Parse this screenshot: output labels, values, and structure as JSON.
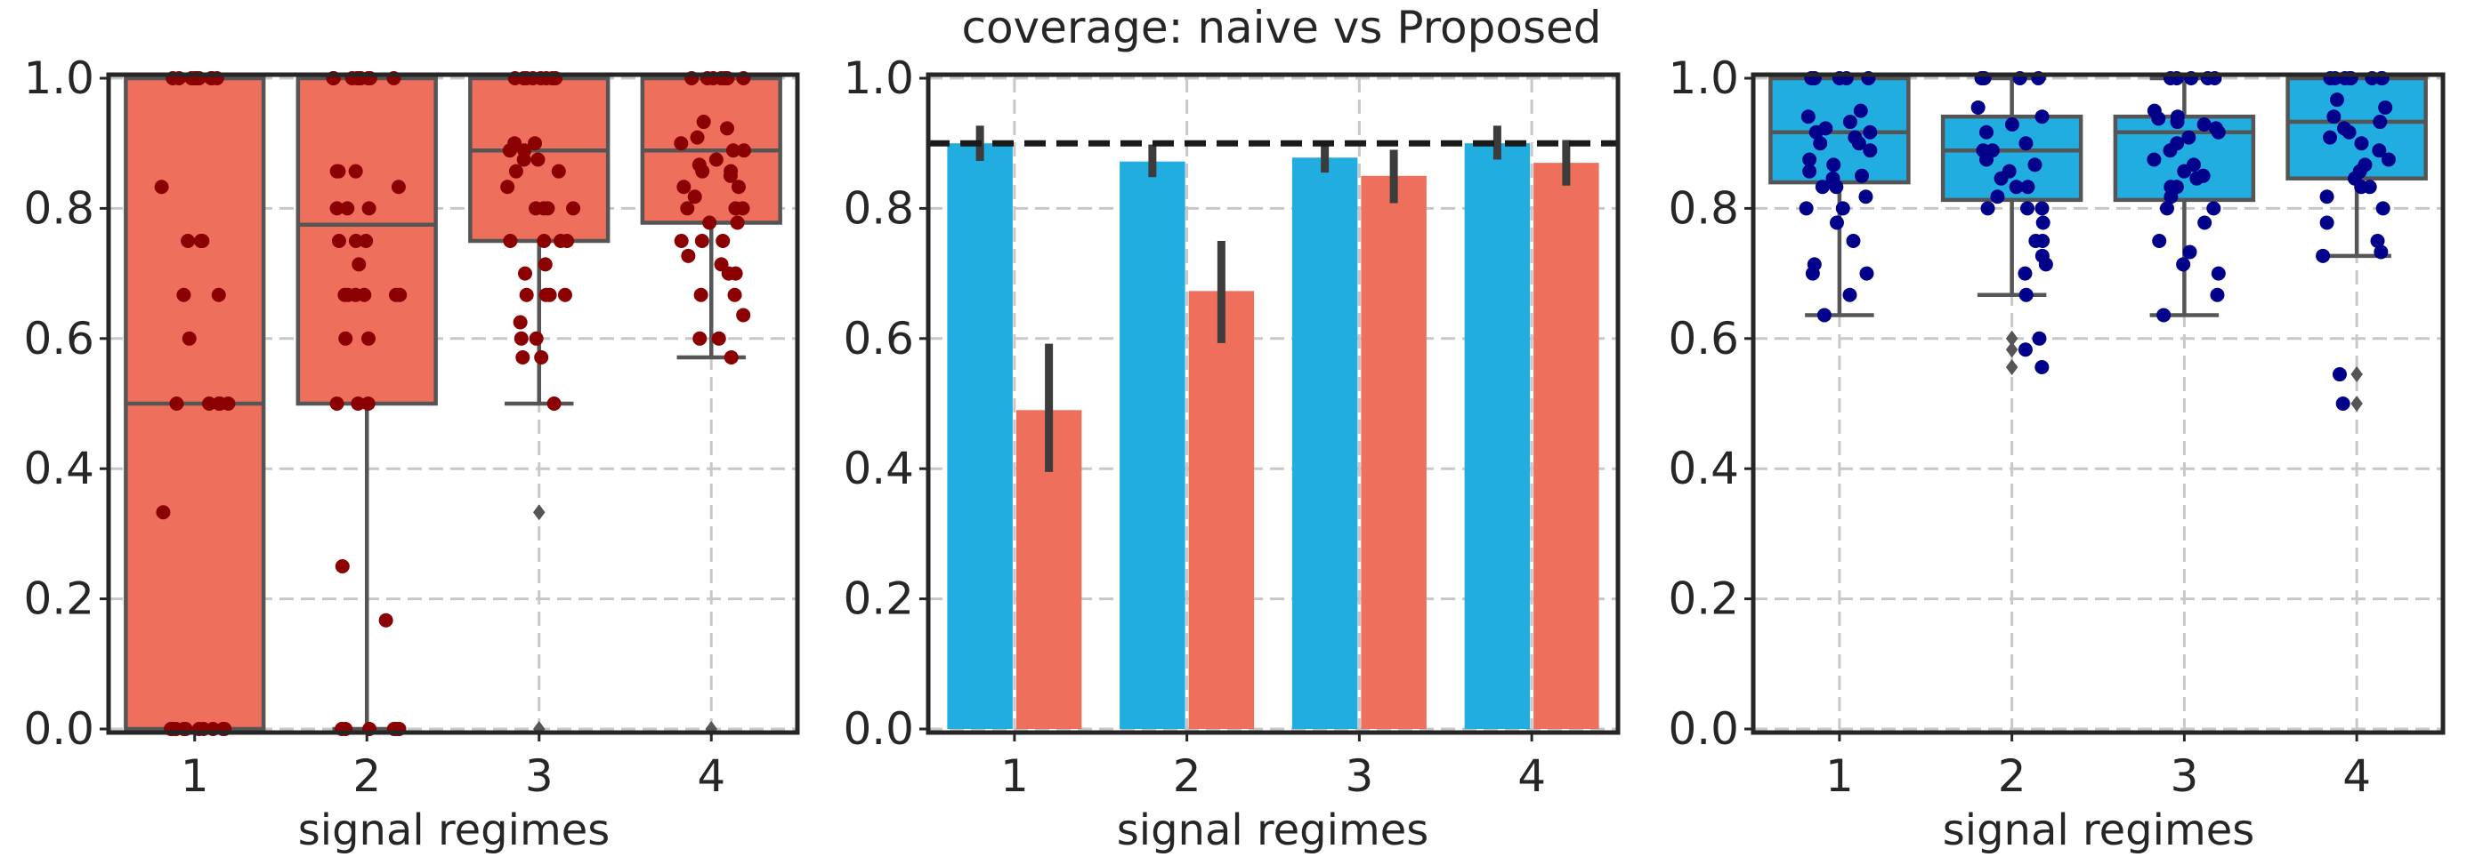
{
  "figure": {
    "suptitle": "coverage: naive vs Proposed"
  },
  "chart_data": [
    {
      "type": "box",
      "title": "",
      "xlabel": "signal regimes",
      "ylabel": "",
      "categories": [
        "1",
        "2",
        "3",
        "4"
      ],
      "ylim": [
        0,
        1.0
      ],
      "yticks": [
        "0.0",
        "0.2",
        "0.4",
        "0.6",
        "0.8",
        "1.0"
      ],
      "grid": true,
      "box_color": "#ee6f5c",
      "point_color": "#8b0000",
      "series": [
        {
          "values": [
            {
              "whislo": 0.0,
              "q1": 0.0,
              "median": 0.5,
              "q3": 1.0,
              "whishi": 1.0,
              "fliers": []
            },
            {
              "whislo": 0.0,
              "q1": 0.5,
              "median": 0.775,
              "q3": 1.0,
              "whishi": 1.0,
              "fliers": []
            },
            {
              "whislo": 0.5,
              "q1": 0.75,
              "median": 0.889,
              "q3": 1.0,
              "whishi": 1.0,
              "fliers": [
                0.333,
                0.0
              ]
            },
            {
              "whislo": 0.571,
              "q1": 0.778,
              "median": 0.889,
              "q3": 1.0,
              "whishi": 1.0,
              "fliers": [
                0.0
              ]
            }
          ],
          "points": [
            [
              1.0,
              1.0,
              1.0,
              1.0,
              1.0,
              1.0,
              1.0,
              1.0,
              1.0,
              1.0,
              0.833,
              0.75,
              0.75,
              0.75,
              0.667,
              0.667,
              0.6,
              0.5,
              0.5,
              0.5,
              0.5,
              0.5,
              0.333,
              0.0,
              0.0,
              0.0,
              0.0,
              0.0,
              0.0,
              0.0,
              0.0,
              0.0,
              0.0
            ],
            [
              1.0,
              1.0,
              1.0,
              1.0,
              1.0,
              1.0,
              1.0,
              1.0,
              1.0,
              0.857,
              0.857,
              0.857,
              0.833,
              0.8,
              0.8,
              0.8,
              0.75,
              0.75,
              0.75,
              0.714,
              0.667,
              0.667,
              0.667,
              0.667,
              0.667,
              0.667,
              0.6,
              0.6,
              0.5,
              0.5,
              0.5,
              0.25,
              0.167,
              0.0,
              0.0,
              0.0,
              0.0,
              0.0,
              0.0
            ],
            [
              1.0,
              1.0,
              1.0,
              1.0,
              1.0,
              1.0,
              1.0,
              1.0,
              0.9,
              0.9,
              0.889,
              0.889,
              0.875,
              0.875,
              0.857,
              0.857,
              0.833,
              0.8,
              0.8,
              0.8,
              0.8,
              0.75,
              0.75,
              0.75,
              0.75,
              0.714,
              0.7,
              0.667,
              0.667,
              0.667,
              0.667,
              0.625,
              0.6,
              0.6,
              0.571,
              0.571,
              0.5
            ],
            [
              1.0,
              1.0,
              1.0,
              1.0,
              1.0,
              1.0,
              1.0,
              1.0,
              0.933,
              0.923,
              0.909,
              0.9,
              0.889,
              0.889,
              0.875,
              0.867,
              0.857,
              0.857,
              0.85,
              0.833,
              0.833,
              0.818,
              0.8,
              0.8,
              0.8,
              0.778,
              0.778,
              0.75,
              0.75,
              0.75,
              0.727,
              0.714,
              0.7,
              0.7,
              0.667,
              0.667,
              0.636,
              0.6,
              0.6,
              0.571
            ]
          ]
        }
      ]
    },
    {
      "type": "bar",
      "title": "",
      "xlabel": "signal regimes",
      "ylabel": "",
      "categories": [
        "1",
        "2",
        "3",
        "4"
      ],
      "ylim": [
        0,
        1.0
      ],
      "yticks": [
        "0.0",
        "0.2",
        "0.4",
        "0.6",
        "0.8",
        "1.0"
      ],
      "grid": true,
      "reference_line": 0.9,
      "series": [
        {
          "color": "#22ade0",
          "values": [
            0.9,
            0.872,
            0.878,
            0.9
          ],
          "ci": [
            [
              0.873,
              0.927
            ],
            [
              0.848,
              0.898
            ],
            [
              0.855,
              0.902
            ],
            [
              0.875,
              0.927
            ]
          ]
        },
        {
          "color": "#ee6f5c",
          "values": [
            0.49,
            0.673,
            0.85,
            0.87
          ],
          "ci": [
            [
              0.395,
              0.592
            ],
            [
              0.593,
              0.75
            ],
            [
              0.808,
              0.89
            ],
            [
              0.835,
              0.905
            ]
          ]
        }
      ]
    },
    {
      "type": "box",
      "title": "",
      "xlabel": "signal regimes",
      "ylabel": "",
      "categories": [
        "1",
        "2",
        "3",
        "4"
      ],
      "ylim": [
        0,
        1.0
      ],
      "yticks": [
        "0.0",
        "0.2",
        "0.4",
        "0.6",
        "0.8",
        "1.0"
      ],
      "grid": true,
      "box_color": "#22ade0",
      "point_color": "#00008b",
      "series": [
        {
          "values": [
            {
              "whislo": 0.636,
              "q1": 0.84,
              "median": 0.917,
              "q3": 1.0,
              "whishi": 1.0,
              "fliers": []
            },
            {
              "whislo": 0.667,
              "q1": 0.813,
              "median": 0.889,
              "q3": 0.941,
              "whishi": 1.0,
              "fliers": [
                0.6,
                0.583,
                0.556
              ]
            },
            {
              "whislo": 0.636,
              "q1": 0.813,
              "median": 0.917,
              "q3": 0.941,
              "whishi": 1.0,
              "fliers": []
            },
            {
              "whislo": 0.727,
              "q1": 0.846,
              "median": 0.933,
              "q3": 1.0,
              "whishi": 1.0,
              "fliers": [
                0.545,
                0.5
              ]
            }
          ],
          "points": [
            [
              1.0,
              1.0,
              1.0,
              1.0,
              1.0,
              0.95,
              0.941,
              0.933,
              0.923,
              0.917,
              0.917,
              0.909,
              0.9,
              0.9,
              0.889,
              0.875,
              0.867,
              0.857,
              0.85,
              0.846,
              0.833,
              0.833,
              0.818,
              0.8,
              0.8,
              0.778,
              0.75,
              0.714,
              0.7,
              0.7,
              0.667,
              0.636
            ],
            [
              1.0,
              1.0,
              1.0,
              1.0,
              1.0,
              0.955,
              0.941,
              0.929,
              0.917,
              0.9,
              0.889,
              0.889,
              0.875,
              0.867,
              0.857,
              0.846,
              0.833,
              0.833,
              0.818,
              0.8,
              0.8,
              0.8,
              0.778,
              0.75,
              0.75,
              0.727,
              0.714,
              0.7,
              0.667,
              0.6,
              0.583,
              0.556
            ],
            [
              1.0,
              1.0,
              1.0,
              1.0,
              1.0,
              0.95,
              0.941,
              0.938,
              0.933,
              0.929,
              0.923,
              0.917,
              0.909,
              0.9,
              0.889,
              0.875,
              0.867,
              0.857,
              0.85,
              0.846,
              0.833,
              0.833,
              0.818,
              0.8,
              0.8,
              0.778,
              0.75,
              0.733,
              0.714,
              0.7,
              0.667,
              0.636
            ],
            [
              1.0,
              1.0,
              1.0,
              1.0,
              1.0,
              1.0,
              1.0,
              1.0,
              0.967,
              0.955,
              0.941,
              0.933,
              0.923,
              0.917,
              0.909,
              0.9,
              0.889,
              0.875,
              0.867,
              0.857,
              0.846,
              0.833,
              0.833,
              0.818,
              0.8,
              0.778,
              0.75,
              0.733,
              0.727,
              0.545,
              0.5
            ]
          ]
        }
      ]
    }
  ]
}
